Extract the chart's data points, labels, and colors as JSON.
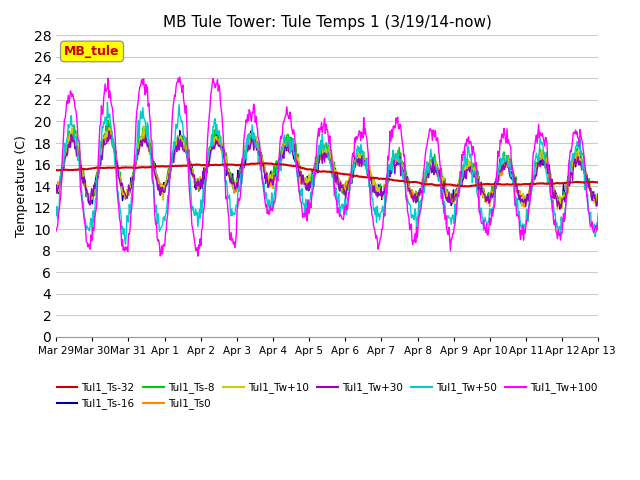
{
  "title": "MB Tule Tower: Tule Temps 1 (3/19/14-now)",
  "ylabel": "Temperature (C)",
  "ylim": [
    0,
    28
  ],
  "yticks": [
    0,
    2,
    4,
    6,
    8,
    10,
    12,
    14,
    16,
    18,
    20,
    22,
    24,
    26,
    28
  ],
  "legend_box_label": "MB_tule",
  "legend_box_color": "#ffff00",
  "legend_box_text_color": "#cc0000",
  "series": [
    {
      "label": "Tul1_Ts-32",
      "color": "#cc0000"
    },
    {
      "label": "Tul1_Ts-16",
      "color": "#000099"
    },
    {
      "label": "Tul1_Ts-8",
      "color": "#00cc00"
    },
    {
      "label": "Tul1_Ts0",
      "color": "#ff8800"
    },
    {
      "label": "Tul1_Tw+10",
      "color": "#cccc00"
    },
    {
      "label": "Tul1_Tw+30",
      "color": "#9900cc"
    },
    {
      "label": "Tul1_Tw+50",
      "color": "#00cccc"
    },
    {
      "label": "Tul1_Tw+100",
      "color": "#ff00ff"
    }
  ],
  "xtick_labels": [
    "Mar 29",
    "Mar 30",
    "Mar 31",
    "Apr 1",
    "Apr 2",
    "Apr 3",
    "Apr 4",
    "Apr 5",
    "Apr 6",
    "Apr 7",
    "Apr 8",
    "Apr 9",
    "Apr 10",
    "Apr 11",
    "Apr 12",
    "Apr 13"
  ],
  "background_color": "#ffffff",
  "grid_color": "#cccccc"
}
